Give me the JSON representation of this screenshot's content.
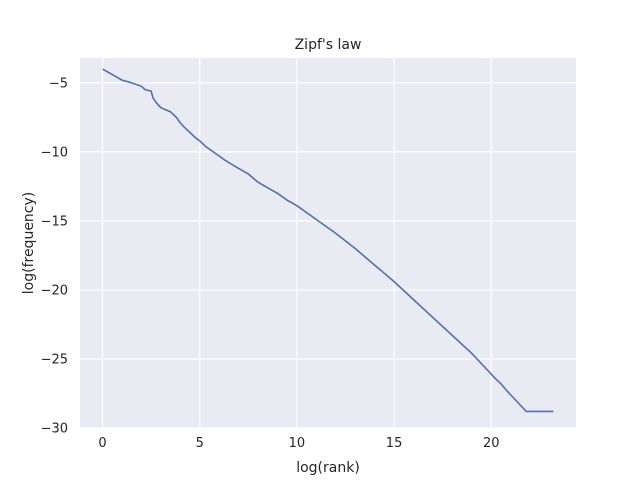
{
  "chart_data": {
    "type": "line",
    "title": "Zipf's law",
    "xlabel": "log(rank)",
    "ylabel": "log(frequency)",
    "xlim": [
      -1.16,
      24.36
    ],
    "ylim": [
      -30,
      -3.2
    ],
    "xticks": [
      0,
      5,
      10,
      15,
      20
    ],
    "yticks": [
      -30,
      -25,
      -20,
      -15,
      -10,
      -5
    ],
    "grid": true,
    "line_color": "#4c72b0",
    "background_color": "#eaeaf2",
    "series": [
      {
        "x": [
          0.0,
          0.5,
          1.0,
          1.5,
          2.0,
          2.2,
          2.5,
          2.6,
          2.8,
          3.0,
          3.5,
          3.8,
          4.0,
          4.2,
          4.5,
          4.8,
          5.0,
          5.3,
          5.6,
          5.8,
          6.0,
          6.3,
          6.7,
          7.0,
          7.5,
          8.0,
          8.5,
          9.0,
          9.5,
          10.0,
          11.0,
          12.0,
          13.0,
          14.0,
          15.0,
          16.0,
          17.0,
          18.0,
          19.0,
          19.6,
          19.8,
          20.0,
          20.2,
          20.5,
          20.8,
          21.2,
          21.8,
          23.2
        ],
        "y": [
          -4.0,
          -4.4,
          -4.8,
          -5.0,
          -5.25,
          -5.5,
          -5.6,
          -6.1,
          -6.5,
          -6.8,
          -7.1,
          -7.5,
          -7.9,
          -8.2,
          -8.6,
          -9.0,
          -9.2,
          -9.6,
          -9.9,
          -10.1,
          -10.3,
          -10.6,
          -10.95,
          -11.2,
          -11.6,
          -12.2,
          -12.6,
          -13.0,
          -13.5,
          -13.9,
          -14.9,
          -15.9,
          -17.0,
          -18.2,
          -19.4,
          -20.7,
          -22.0,
          -23.3,
          -24.6,
          -25.5,
          -25.8,
          -26.1,
          -26.4,
          -26.8,
          -27.3,
          -27.9,
          -28.8,
          -28.8
        ]
      }
    ]
  }
}
